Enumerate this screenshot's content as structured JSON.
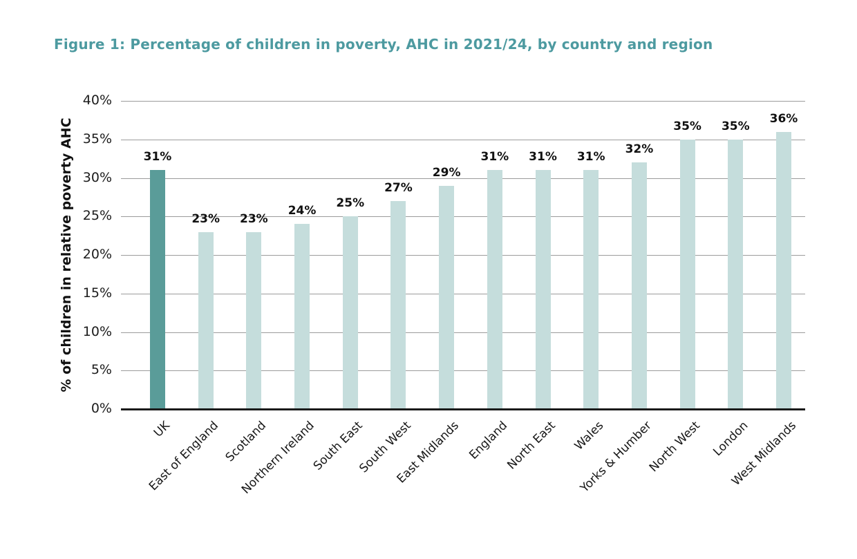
{
  "figure_title": "Figure 1: Percentage of children in poverty, AHC in 2021/24, by country and region",
  "chart_data": {
    "type": "bar",
    "title": "Figure 1: Percentage of children in poverty, AHC in 2021/24, by country and region",
    "categories": [
      "UK",
      "East of England",
      "Scotland",
      "Northern Ireland",
      "South East",
      "South West",
      "East Midlands",
      "England",
      "North East",
      "Wales",
      "Yorks & Humber",
      "North West",
      "London",
      "West Midlands"
    ],
    "values": [
      31,
      23,
      23,
      24,
      25,
      27,
      29,
      31,
      31,
      31,
      32,
      35,
      35,
      36
    ],
    "data_labels": [
      "31%",
      "23%",
      "23%",
      "24%",
      "25%",
      "27%",
      "29%",
      "31%",
      "31%",
      "31%",
      "32%",
      "35%",
      "35%",
      "36%"
    ],
    "xlabel": "",
    "ylabel": "% of children in relative poverty AHC",
    "ylim": [
      0,
      40
    ],
    "yticks": [
      0,
      5,
      10,
      15,
      20,
      25,
      30,
      35,
      40
    ],
    "ytick_labels": [
      "0%",
      "5%",
      "10%",
      "15%",
      "20%",
      "25%",
      "30%",
      "35%",
      "40%"
    ],
    "grid": "horizontal",
    "legend": "none",
    "highlight_category": "UK",
    "colors": {
      "highlight_bar": "#5A9C99",
      "bar": "#C5DDDC",
      "title": "#4D9AA0",
      "gridline": "#9B9B9B",
      "axis_line": "#1A1A1A",
      "label_text": "#111111"
    }
  }
}
